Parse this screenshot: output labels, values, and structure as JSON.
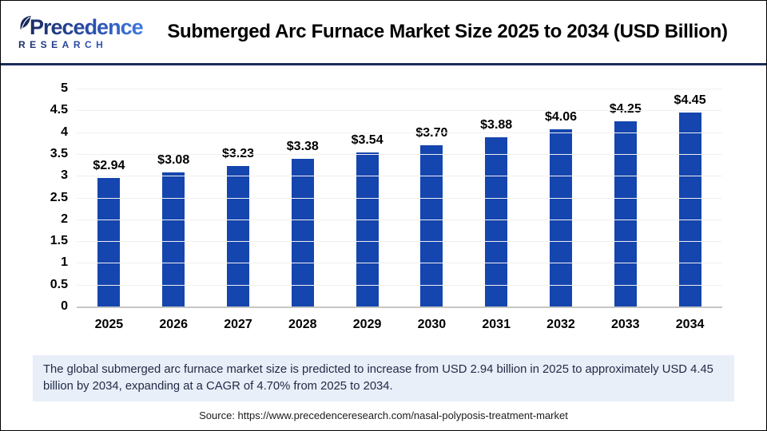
{
  "header": {
    "logo_name": "Precedence",
    "logo_subname": "RESEARCH",
    "title": "Submerged Arc Furnace Market Size 2025 to 2034 (USD Billion)"
  },
  "chart_data": {
    "type": "bar",
    "title": "Submerged Arc Furnace Market Size 2025 to 2034 (USD Billion)",
    "categories": [
      "2025",
      "2026",
      "2027",
      "2028",
      "2029",
      "2030",
      "2031",
      "2032",
      "2033",
      "2034"
    ],
    "values": [
      2.94,
      3.08,
      3.23,
      3.38,
      3.54,
      3.7,
      3.88,
      4.06,
      4.25,
      4.45
    ],
    "bar_labels": [
      "$2.94",
      "$3.08",
      "$3.23",
      "$3.38",
      "$3.54",
      "$3.70",
      "$3.88",
      "$4.06",
      "$4.25",
      "$4.45"
    ],
    "xlabel": "",
    "ylabel": "",
    "ylim": [
      0,
      5
    ],
    "yticks": [
      "0",
      "0.5",
      "1",
      "1.5",
      "2",
      "2.5",
      "3",
      "3.5",
      "4",
      "4.5",
      "5"
    ],
    "grid": true,
    "legend": false,
    "bar_color": "#1545ae"
  },
  "summary": {
    "text": "The global submerged arc furnace market size is predicted to increase from USD 2.94 billion in 2025 to approximately USD 4.45 billion by 2034, expanding at a CAGR of 4.70% from 2025 to 2034."
  },
  "source": {
    "text": "Source: https://www.precedenceresearch.com/nasal-polyposis-treatment-market"
  },
  "colors": {
    "bar": "#1545ae",
    "header_divider": "#1c2b5a",
    "summary_background": "#e9eff9",
    "summary_text": "#212b45",
    "logo_navy": "#1b2d66",
    "logo_blue": "#3f7ae0",
    "gridline": "#f0f0f0",
    "axis_line": "#c6c6c6"
  }
}
